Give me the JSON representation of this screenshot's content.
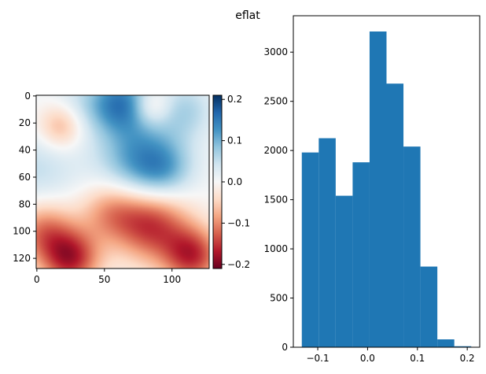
{
  "title": "eflat",
  "chart_data": [
    {
      "type": "heatmap",
      "xlim": [
        0,
        127
      ],
      "ylim": [
        127,
        0
      ],
      "xticks": [
        0,
        50,
        100
      ],
      "yticks": [
        0,
        20,
        40,
        60,
        80,
        100,
        120
      ],
      "xtick_labels": [
        "0",
        "50",
        "100"
      ],
      "ytick_labels": [
        "0",
        "20",
        "40",
        "60",
        "80",
        "100",
        "120"
      ],
      "colormap": "RdBu",
      "vmin": -0.21,
      "vmax": 0.21,
      "blobs": [
        {
          "x": 62,
          "y": 5,
          "r": 16,
          "v": 0.14
        },
        {
          "x": 78,
          "y": 48,
          "r": 22,
          "v": 0.13
        },
        {
          "x": 110,
          "y": 10,
          "r": 15,
          "v": 0.06
        },
        {
          "x": 0,
          "y": 55,
          "r": 22,
          "v": 0.05
        },
        {
          "x": 95,
          "y": 55,
          "r": 14,
          "v": 0.05
        },
        {
          "x": 30,
          "y": 8,
          "r": 16,
          "v": 0.04
        },
        {
          "x": 85,
          "y": 8,
          "r": 10,
          "v": -0.07
        },
        {
          "x": 18,
          "y": 22,
          "r": 12,
          "v": -0.09
        },
        {
          "x": 25,
          "y": 120,
          "r": 15,
          "v": -0.16
        },
        {
          "x": 115,
          "y": 118,
          "r": 15,
          "v": -0.15
        },
        {
          "x": 85,
          "y": 95,
          "r": 19,
          "v": -0.15
        },
        {
          "x": 5,
          "y": 100,
          "r": 16,
          "v": -0.11
        },
        {
          "x": 55,
          "y": 85,
          "r": 16,
          "v": -0.09
        }
      ]
    },
    {
      "type": "colorbar",
      "vmin": -0.21,
      "vmax": 0.21,
      "ticks": [
        -0.2,
        -0.1,
        0.0,
        0.1,
        0.2
      ],
      "tick_labels": [
        "−0.2",
        "−0.1",
        "0.0",
        "0.1",
        "0.2"
      ]
    },
    {
      "type": "bar",
      "bin_edges": [
        -0.132,
        -0.098,
        -0.064,
        -0.03,
        0.004,
        0.038,
        0.072,
        0.106,
        0.14,
        0.174,
        0.208
      ],
      "counts": [
        1980,
        2125,
        1540,
        1880,
        3210,
        2680,
        2040,
        820,
        80,
        10
      ],
      "bar_color": "#1f77b4",
      "xlim": [
        -0.149,
        0.225
      ],
      "ylim": [
        0,
        3370
      ],
      "xticks": [
        -0.1,
        0.0,
        0.1,
        0.2
      ],
      "xtick_labels": [
        "−0.1",
        "0.0",
        "0.1",
        "0.2"
      ],
      "yticks": [
        0,
        500,
        1000,
        1500,
        2000,
        2500,
        3000
      ],
      "ytick_labels": [
        "0",
        "500",
        "1000",
        "1500",
        "2000",
        "2500",
        "3000"
      ]
    }
  ]
}
